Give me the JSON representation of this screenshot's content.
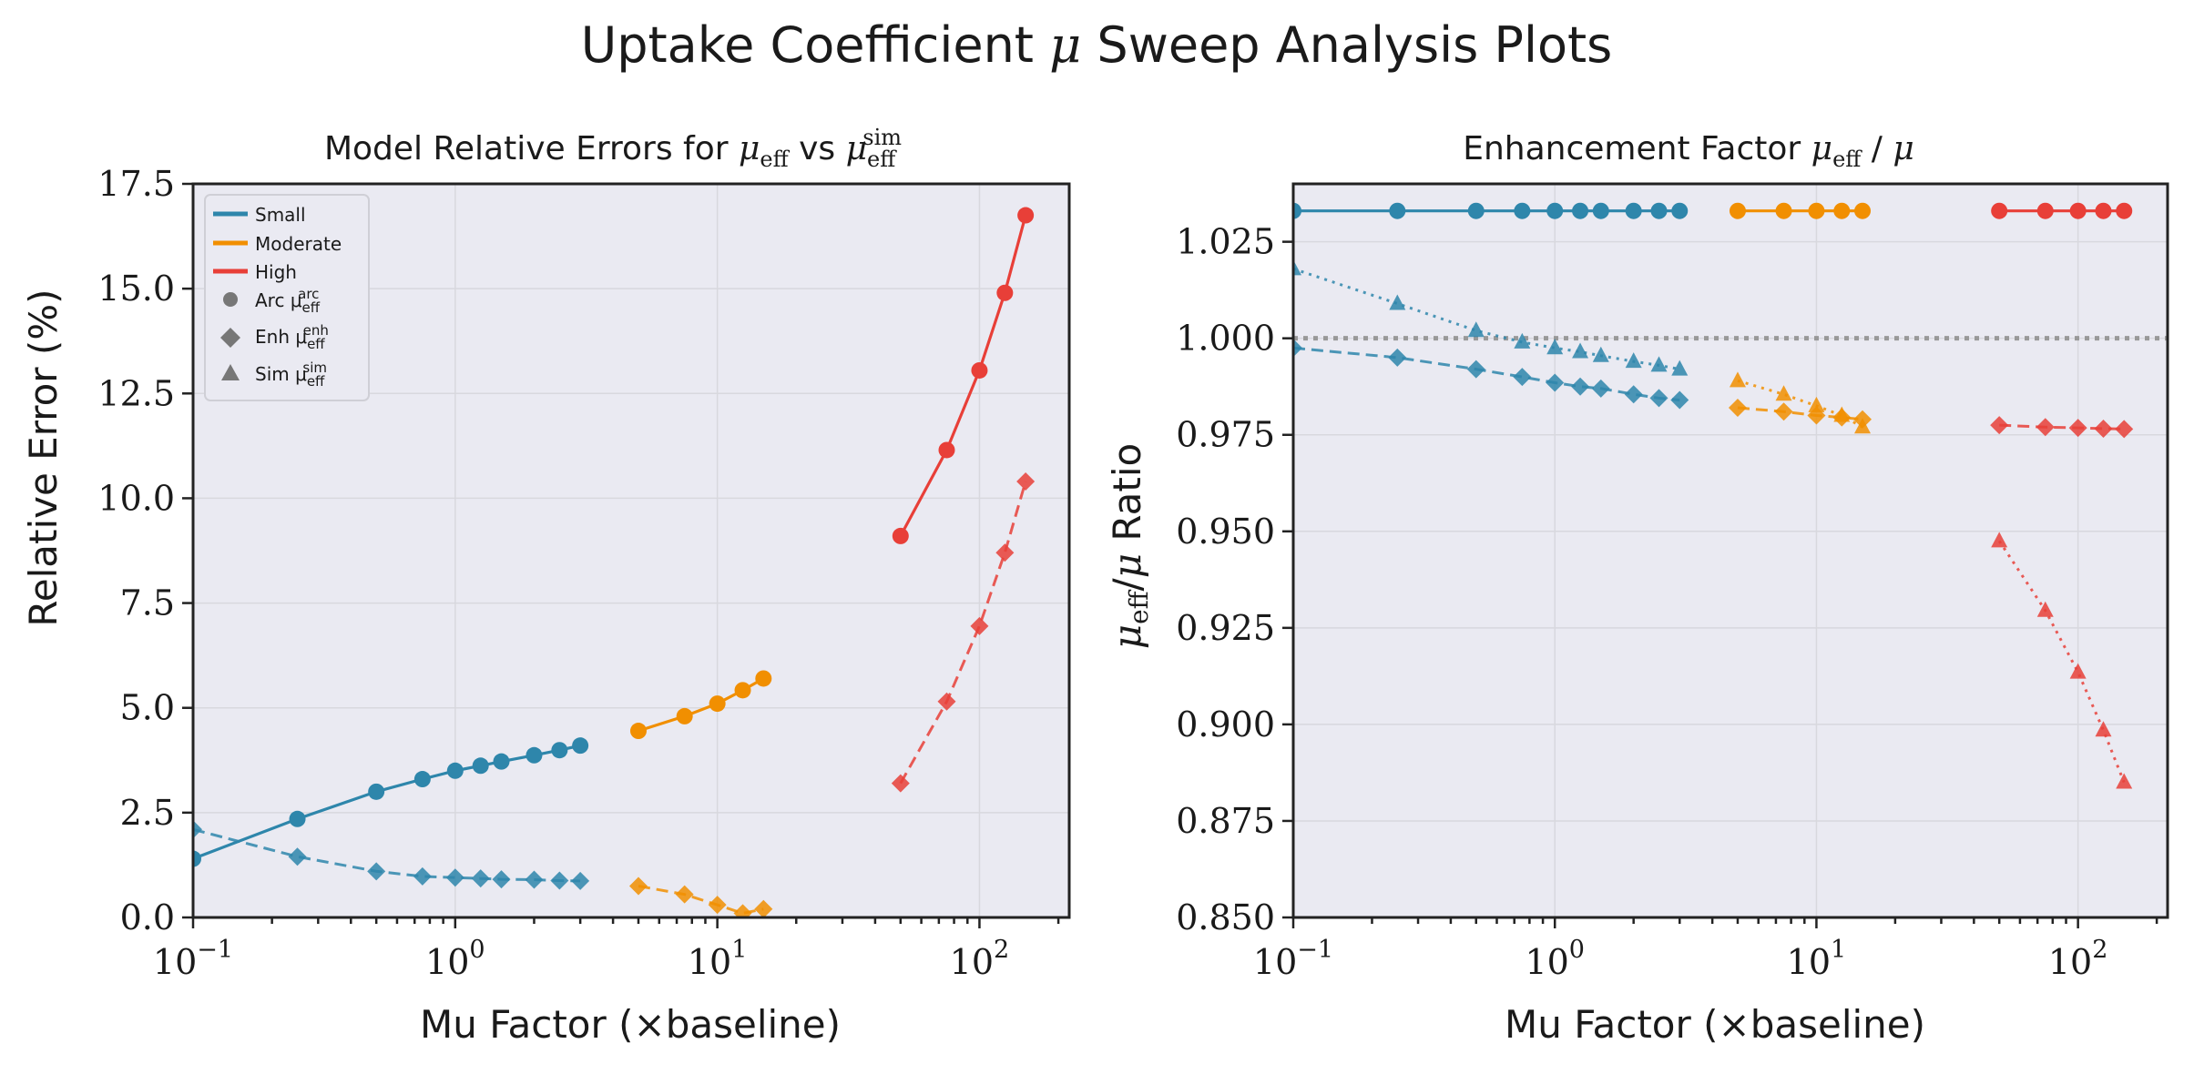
{
  "figure_title": {
    "pre": "Uptake Coefficient ",
    "mu": "μ",
    "post": " Sweep Analysis Plots"
  },
  "colors": {
    "Small": "#2e86ab",
    "Moderate": "#f18f01",
    "High": "#e83f38",
    "reference": "#999999"
  },
  "chart_data": [
    {
      "type": "line",
      "title": {
        "pre": "Model Relative Errors for ",
        "mu1": "μ",
        "sub1": "eff",
        "mid": " vs ",
        "mu2": "μ",
        "sub2": "eff",
        "sup2": "sim"
      },
      "xlabel": "Mu Factor (×baseline)",
      "ylabel": "Relative Error (%)",
      "xscale": "log",
      "xlim": [
        0.1,
        220
      ],
      "ylim": [
        0,
        17.5
      ],
      "yticks": [
        "0.0",
        "2.5",
        "5.0",
        "7.5",
        "10.0",
        "12.5",
        "15.0",
        "17.5"
      ],
      "xticks": [
        {
          "base": "10",
          "exp": "−1"
        },
        {
          "base": "10",
          "exp": "0"
        },
        {
          "base": "10",
          "exp": "1"
        },
        {
          "base": "10",
          "exp": "2"
        }
      ],
      "grid": true,
      "legend_position": "top-left",
      "legend": [
        {
          "label": "Small",
          "kind": "line",
          "color": "#2e86ab"
        },
        {
          "label": "Moderate",
          "kind": "line",
          "color": "#f18f01"
        },
        {
          "label": "High",
          "kind": "line",
          "color": "#e83f38"
        },
        {
          "label": "Arc μ",
          "sub": "eff",
          "sup": "arc",
          "kind": "circle",
          "color": "#777777"
        },
        {
          "label": "Enh μ",
          "sub": "eff",
          "sup": "enh",
          "kind": "diamond",
          "color": "#777777"
        },
        {
          "label": "Sim μ",
          "sub": "eff",
          "sup": "sim",
          "kind": "triangle",
          "color": "#777777"
        }
      ],
      "series": [
        {
          "regime": "Small",
          "model": "Arc",
          "x": [
            0.1,
            0.25,
            0.5,
            0.75,
            1.0,
            1.25,
            1.5,
            2.0,
            2.5,
            3.0
          ],
          "y": [
            1.4,
            2.35,
            3.0,
            3.3,
            3.5,
            3.62,
            3.72,
            3.87,
            3.99,
            4.1
          ]
        },
        {
          "regime": "Small",
          "model": "Enh",
          "x": [
            0.1,
            0.25,
            0.5,
            0.75,
            1.0,
            1.25,
            1.5,
            2.0,
            2.5,
            3.0
          ],
          "y": [
            2.1,
            1.45,
            1.1,
            0.98,
            0.95,
            0.93,
            0.91,
            0.9,
            0.88,
            0.87
          ]
        },
        {
          "regime": "Moderate",
          "model": "Arc",
          "x": [
            5,
            7.5,
            10,
            12.5,
            15
          ],
          "y": [
            4.45,
            4.8,
            5.1,
            5.42,
            5.7
          ]
        },
        {
          "regime": "Moderate",
          "model": "Enh",
          "x": [
            5,
            7.5,
            10,
            12.5,
            15
          ],
          "y": [
            0.75,
            0.55,
            0.3,
            0.1,
            0.2
          ]
        },
        {
          "regime": "High",
          "model": "Arc",
          "x": [
            50,
            75,
            100,
            125,
            150
          ],
          "y": [
            9.1,
            11.15,
            13.05,
            14.9,
            16.75
          ]
        },
        {
          "regime": "High",
          "model": "Enh",
          "x": [
            50,
            75,
            100,
            125,
            150
          ],
          "y": [
            3.2,
            5.15,
            6.95,
            8.7,
            10.4
          ]
        }
      ]
    },
    {
      "type": "line",
      "title": {
        "pre": "Enhancement Factor ",
        "mu1": "μ",
        "sub1": "eff",
        "mid": " / ",
        "mu2": "μ"
      },
      "xlabel": "Mu Factor (×baseline)",
      "ylabel": {
        "mu1": "μ",
        "sub1": "eff",
        "mid": "/",
        "mu2": "μ",
        "post": " Ratio"
      },
      "xscale": "log",
      "xlim": [
        0.1,
        220
      ],
      "ylim": [
        0.85,
        1.04
      ],
      "yticks": [
        "0.850",
        "0.875",
        "0.900",
        "0.925",
        "0.950",
        "0.975",
        "1.000",
        "1.025"
      ],
      "xticks": [
        {
          "base": "10",
          "exp": "−1"
        },
        {
          "base": "10",
          "exp": "0"
        },
        {
          "base": "10",
          "exp": "1"
        },
        {
          "base": "10",
          "exp": "2"
        }
      ],
      "grid": true,
      "reference_line": 1.0,
      "series": [
        {
          "regime": "Small",
          "model": "Arc",
          "x": [
            0.1,
            0.25,
            0.5,
            0.75,
            1.0,
            1.25,
            1.5,
            2.0,
            2.5,
            3.0
          ],
          "y": [
            1.033,
            1.033,
            1.033,
            1.033,
            1.033,
            1.033,
            1.033,
            1.033,
            1.033,
            1.033
          ]
        },
        {
          "regime": "Small",
          "model": "Enh",
          "x": [
            0.1,
            0.25,
            0.5,
            0.75,
            1.0,
            1.25,
            1.5,
            2.0,
            2.5,
            3.0
          ],
          "y": [
            0.9975,
            0.995,
            0.992,
            0.99,
            0.9885,
            0.9875,
            0.987,
            0.9855,
            0.9845,
            0.984
          ]
        },
        {
          "regime": "Small",
          "model": "Sim",
          "x": [
            0.1,
            0.25,
            0.5,
            0.75,
            1.0,
            1.25,
            1.5,
            2.0,
            2.5,
            3.0
          ],
          "y": [
            1.018,
            1.009,
            1.002,
            0.999,
            0.9975,
            0.9965,
            0.9955,
            0.994,
            0.993,
            0.992
          ]
        },
        {
          "regime": "Moderate",
          "model": "Arc",
          "x": [
            5,
            7.5,
            10,
            12.5,
            15
          ],
          "y": [
            1.033,
            1.033,
            1.033,
            1.033,
            1.033
          ]
        },
        {
          "regime": "Moderate",
          "model": "Enh",
          "x": [
            5,
            7.5,
            10,
            12.5,
            15
          ],
          "y": [
            0.982,
            0.981,
            0.98,
            0.9795,
            0.979
          ]
        },
        {
          "regime": "Moderate",
          "model": "Sim",
          "x": [
            5,
            7.5,
            10,
            12.5,
            15
          ],
          "y": [
            0.989,
            0.9855,
            0.9825,
            0.98,
            0.977
          ]
        },
        {
          "regime": "High",
          "model": "Arc",
          "x": [
            50,
            75,
            100,
            125,
            150
          ],
          "y": [
            1.033,
            1.033,
            1.033,
            1.033,
            1.033
          ]
        },
        {
          "regime": "High",
          "model": "Enh",
          "x": [
            50,
            75,
            100,
            125,
            150
          ],
          "y": [
            0.9775,
            0.977,
            0.9768,
            0.9766,
            0.9765
          ]
        },
        {
          "regime": "High",
          "model": "Sim",
          "x": [
            50,
            75,
            100,
            125,
            150
          ],
          "y": [
            0.9475,
            0.9295,
            0.9135,
            0.8985,
            0.885
          ]
        }
      ]
    }
  ]
}
